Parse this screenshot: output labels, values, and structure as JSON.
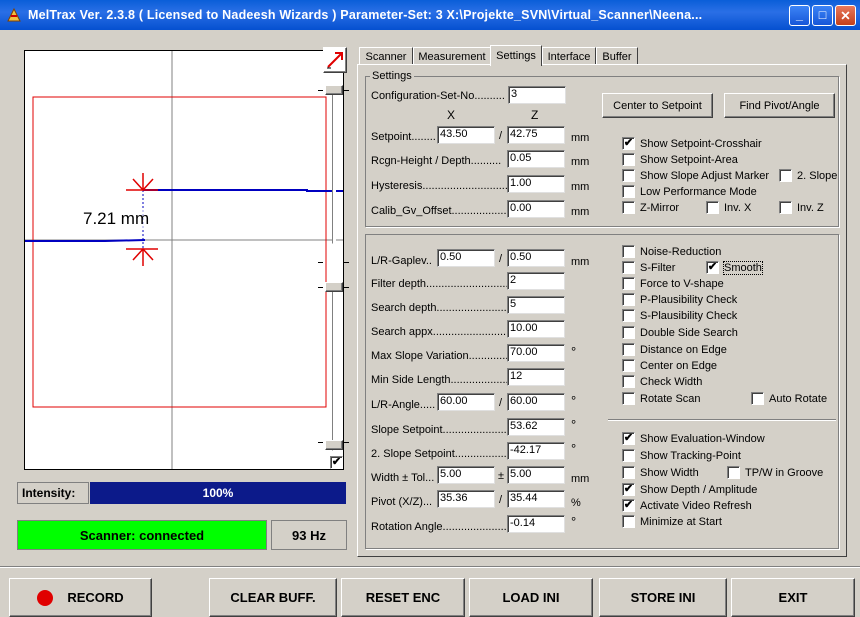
{
  "titlebar": {
    "text": "MelTrax    Ver. 2.3.8  ( Licensed to Nadeesh Wizards )    Parameter-Set: 3   X:\\Projekte_SVN\\Virtual_Scanner\\Neena...",
    "icon": "meltrax-app-icon",
    "minimize": "_",
    "maximize": "□",
    "close": "✕"
  },
  "view": {
    "measurement": "7.21 mm"
  },
  "left": {
    "checkbox_checked": true,
    "check_mark": "✔",
    "intensity_label": "Intensity:",
    "intensity_value": "100%",
    "intensity_fraction": 1.0,
    "scanner_status": "Scanner: connected",
    "frequency": "93 Hz",
    "status_color": "#00ff00"
  },
  "tabs": [
    {
      "label": "Scanner",
      "active": false
    },
    {
      "label": "Measurement",
      "active": false
    },
    {
      "label": "Settings",
      "active": true
    },
    {
      "label": "Interface",
      "active": false
    },
    {
      "label": "Buffer",
      "active": false
    }
  ],
  "settings": {
    "group_title": "Settings",
    "config_label": "Configuration-Set-No..........",
    "config_value": "3",
    "col_x": "X",
    "col_z": "Z",
    "center_button": "Center to Setpoint",
    "find_button": "Find Pivot/Angle",
    "setpoint_label": "Setpoint........",
    "setpoint_x": "43.50",
    "setpoint_z": "42.75",
    "rcgn_label": "Rcgn-Height / Depth..........",
    "rcgn_value": "0.05",
    "hyst_label": "Hysteresis..............................",
    "hyst_value": "1.00",
    "calib_label": "Calib_Gv_Offset....................",
    "calib_value": "0.00",
    "unit_mm": "mm",
    "slash": "/",
    "checks": [
      {
        "label": "Show Setpoint-Crosshair",
        "checked": true
      },
      {
        "label": "Show Setpoint-Area",
        "checked": false
      },
      {
        "label": "Show Slope Adjust Marker",
        "checked": false
      },
      {
        "label": "2. Slope",
        "checked": false
      },
      {
        "label": "Low Performance Mode",
        "checked": false
      },
      {
        "label": "Z-Mirror",
        "checked": false
      },
      {
        "label": "Inv. X",
        "checked": false
      },
      {
        "label": "Inv. Z",
        "checked": false
      }
    ]
  },
  "params": {
    "gaplev_label": "L/R-Gaplev..",
    "gaplev_x": "0.50",
    "gaplev_z": "0.50",
    "filter_label": "Filter depth...............................",
    "filter_value": "2",
    "search_depth_label": "Search depth...........................",
    "search_depth_value": "5",
    "search_appx_label": "Search appx.............................",
    "search_appx_value": "10.00",
    "max_slope_label": "Max Slope Variation..............",
    "max_slope_value": "70.00",
    "min_side_label": "Min Side Length....................",
    "min_side_value": "12",
    "lr_angle_label": "L/R-Angle.....",
    "lr_angle_x": "60.00",
    "lr_angle_z": "60.00",
    "slope_sp_label": "Slope Setpoint.......................",
    "slope_sp_value": "53.62",
    "slope2_label": "2. Slope Setpoint..................",
    "slope2_value": "-42.17",
    "width_label": "Width ± Tol...",
    "width_x": "5.00",
    "width_z": "5.00",
    "pm": "±",
    "pivot_label": "Pivot (X/Z)...",
    "pivot_x": "35.36",
    "pivot_z": "35.44",
    "rot_label": "Rotation Angle.......................",
    "rot_value": "-0.14",
    "unit_deg": "°",
    "unit_pct": "%",
    "unit_mm": "mm",
    "slash": "/",
    "checks": [
      {
        "label": "Noise-Reduction",
        "checked": false
      },
      {
        "label": "S-Filter",
        "checked": false
      },
      {
        "label": "Smooth",
        "checked": true
      },
      {
        "label": "Force to V-shape",
        "checked": false
      },
      {
        "label": "P-Plausibility Check",
        "checked": false
      },
      {
        "label": "S-Plausibility Check",
        "checked": false
      },
      {
        "label": "Double Side Search",
        "checked": false
      },
      {
        "label": "Distance on Edge",
        "checked": false
      },
      {
        "label": "Center on Edge",
        "checked": false
      },
      {
        "label": "Check Width",
        "checked": false
      },
      {
        "label": "Rotate Scan",
        "checked": false
      },
      {
        "label": "Auto Rotate",
        "checked": false
      },
      {
        "label": "Show Evaluation-Window",
        "checked": true
      },
      {
        "label": "Show Tracking-Point",
        "checked": false
      },
      {
        "label": "Show Width",
        "checked": false
      },
      {
        "label": "TP/W in Groove",
        "checked": false
      },
      {
        "label": "Show Depth / Amplitude",
        "checked": true
      },
      {
        "label": "Activate Video Refresh",
        "checked": true
      },
      {
        "label": "Minimize at Start",
        "checked": false
      }
    ]
  },
  "bottom": {
    "record": "RECORD",
    "clear": "CLEAR BUFF.",
    "reset": "RESET ENC",
    "load": "LOAD INI",
    "store": "STORE INI",
    "exit": "EXIT",
    "record_color": "#e00000"
  }
}
